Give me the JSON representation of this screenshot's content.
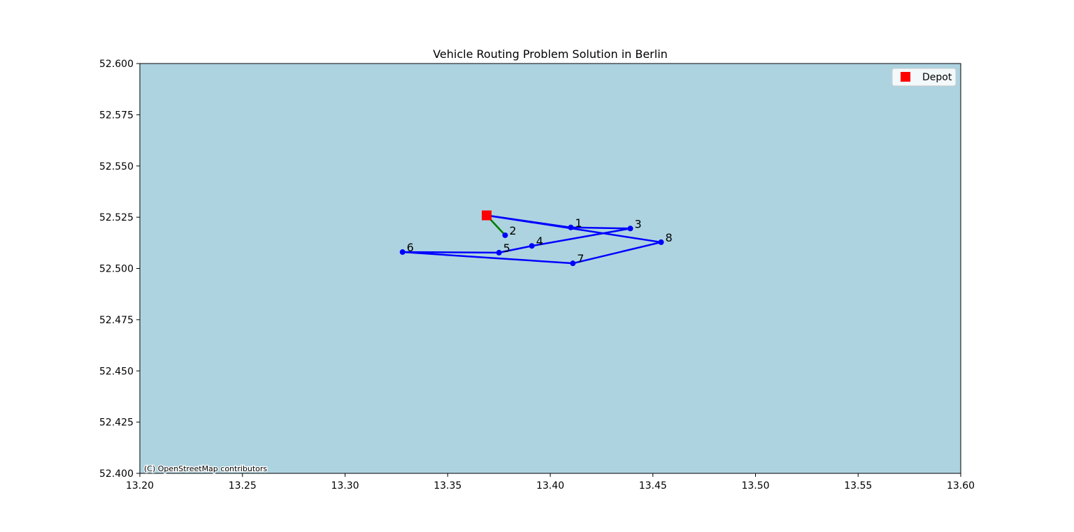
{
  "chart_data": {
    "type": "scatter",
    "title": "Vehicle Routing Problem Solution in Berlin",
    "xlabel": "",
    "ylabel": "",
    "xlim": [
      13.2,
      13.6
    ],
    "ylim": [
      52.4,
      52.6
    ],
    "x_ticks": [
      "13.20",
      "13.25",
      "13.30",
      "13.35",
      "13.40",
      "13.45",
      "13.50",
      "13.55",
      "13.60"
    ],
    "y_ticks": [
      "52.400",
      "52.425",
      "52.450",
      "52.475",
      "52.500",
      "52.525",
      "52.550",
      "52.575",
      "52.600"
    ],
    "grid": false,
    "background_color": "#add3e0",
    "attribution": "(C) OpenStreetMap contributors",
    "legend": {
      "placement": "top-right",
      "entries": [
        {
          "label": "Depot",
          "color": "#ff0000",
          "marker": "square"
        }
      ]
    },
    "depot": {
      "x": 13.369,
      "y": 52.5259
    },
    "customers": [
      {
        "label": "1",
        "x": 13.41,
        "y": 52.52
      },
      {
        "label": "2",
        "x": 13.378,
        "y": 52.5162
      },
      {
        "label": "3",
        "x": 13.439,
        "y": 52.5195
      },
      {
        "label": "4",
        "x": 13.391,
        "y": 52.511
      },
      {
        "label": "5",
        "x": 13.375,
        "y": 52.5077
      },
      {
        "label": "6",
        "x": 13.328,
        "y": 52.508
      },
      {
        "label": "7",
        "x": 13.411,
        "y": 52.5025
      },
      {
        "label": "8",
        "x": 13.454,
        "y": 52.5128
      }
    ],
    "routes": [
      {
        "color": "#0000ff",
        "stops": [
          "depot",
          "1",
          "3",
          "4",
          "5",
          "6",
          "7",
          "8",
          "depot"
        ]
      },
      {
        "color": "#008000",
        "stops": [
          "depot",
          "2",
          "depot"
        ]
      }
    ],
    "customer_color": "#0000ff"
  }
}
